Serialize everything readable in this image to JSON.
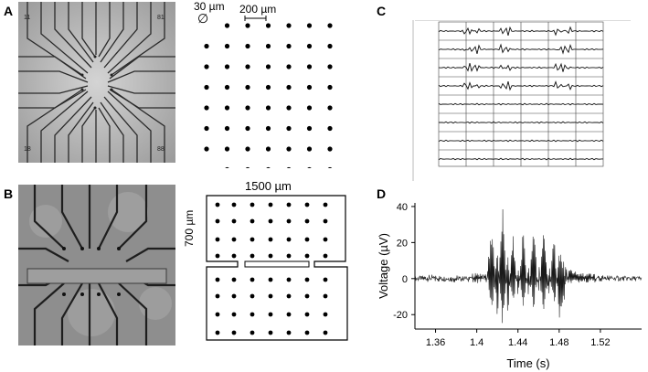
{
  "figure": {
    "panel_labels": {
      "a": "A",
      "b": "B",
      "c": "C",
      "d": "D"
    },
    "panel_a": {
      "photo_corner_labels": [
        "11",
        "81",
        "18",
        "88"
      ],
      "electrode_diameter": "30 µm",
      "electrode_spacing": "200 µm",
      "diameter_symbol": "∅"
    },
    "panel_b": {
      "width_label": "1500 µm",
      "height_label": "700 µm"
    },
    "panel_c": {
      "description_text": ""
    }
  },
  "chart_data": {
    "type": "line",
    "title": "",
    "xlabel": "Time (s)",
    "ylabel": "Voltage (µV)",
    "xlim": [
      1.34,
      1.56
    ],
    "ylim": [
      -28,
      42
    ],
    "xticks": [
      1.36,
      1.4,
      1.44,
      1.48,
      1.52
    ],
    "xtick_labels": [
      "1.36",
      "1.4",
      "1.44",
      "1.48",
      "1.52"
    ],
    "yticks": [
      -20,
      0,
      20,
      40
    ],
    "ytick_labels": [
      "-20",
      "0",
      "20",
      "40"
    ],
    "grid": false,
    "series": [
      {
        "x": [
          1.34,
          1.36,
          1.38,
          1.4,
          1.41,
          1.415,
          1.42,
          1.425,
          1.43,
          1.435,
          1.44,
          1.445,
          1.45,
          1.455,
          1.46,
          1.465,
          1.47,
          1.475,
          1.48,
          1.49,
          1.5,
          1.52,
          1.54,
          1.56
        ],
        "y": [
          0,
          1,
          -1,
          2,
          1,
          26,
          -22,
          38,
          -18,
          22,
          -12,
          24,
          -10,
          24,
          -8,
          26,
          -8,
          20,
          -20,
          4,
          2,
          1,
          0,
          0
        ]
      }
    ]
  }
}
